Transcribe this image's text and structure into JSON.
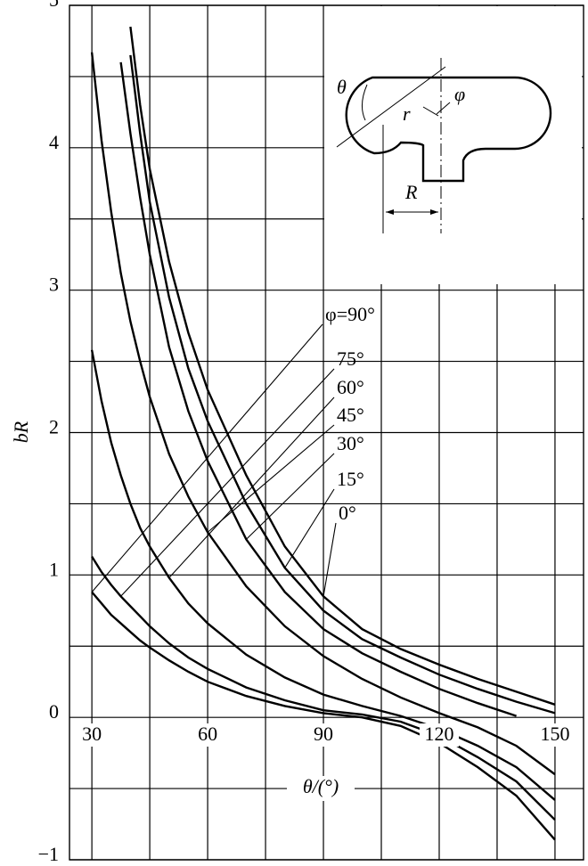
{
  "chart_data": {
    "type": "line",
    "xlabel": "θ/(°)",
    "ylabel": "bR",
    "x": [
      30,
      32.5,
      35,
      37.5,
      40,
      42.5,
      45,
      50,
      55,
      60,
      70,
      80,
      90,
      100,
      110,
      120,
      130,
      140,
      150
    ],
    "series": [
      {
        "name": "φ=90°",
        "color": "#000000",
        "values": [
          0.88,
          0.8,
          0.72,
          0.66,
          0.6,
          0.54,
          0.49,
          0.4,
          0.32,
          0.25,
          0.15,
          0.08,
          0.03,
          0,
          -0.06,
          -0.18,
          -0.35,
          -0.55,
          -0.86
        ]
      },
      {
        "name": "75°",
        "color": "#000000",
        "values": [
          1.13,
          1.02,
          0.93,
          0.85,
          0.78,
          0.71,
          0.64,
          0.52,
          0.42,
          0.34,
          0.21,
          0.12,
          0.05,
          0.02,
          -0.03,
          -0.13,
          -0.28,
          -0.45,
          -0.72
        ]
      },
      {
        "name": "60°",
        "color": "#000000",
        "values": [
          2.58,
          2.22,
          1.93,
          1.7,
          1.5,
          1.33,
          1.2,
          0.98,
          0.8,
          0.66,
          0.44,
          0.28,
          0.16,
          0.08,
          0.01,
          -0.08,
          -0.2,
          -0.35,
          -0.58
        ]
      },
      {
        "name": "45°",
        "color": "#000000",
        "values": [
          4.67,
          4.05,
          3.55,
          3.12,
          2.78,
          2.5,
          2.25,
          1.85,
          1.55,
          1.3,
          0.92,
          0.64,
          0.43,
          0.27,
          0.14,
          0.03,
          -0.07,
          -0.2,
          -0.4
        ]
      },
      {
        "name": "30°",
        "color": "#000000",
        "values": [
          null,
          null,
          null,
          4.6,
          4.1,
          3.65,
          3.25,
          2.6,
          2.15,
          1.8,
          1.25,
          0.88,
          0.62,
          0.45,
          0.32,
          0.2,
          0.1,
          0.01,
          null
        ]
      },
      {
        "name": "15°",
        "color": "#000000",
        "values": [
          null,
          null,
          null,
          null,
          4.65,
          4.1,
          3.62,
          2.95,
          2.45,
          2.08,
          1.5,
          1.05,
          0.75,
          0.55,
          0.42,
          0.3,
          0.2,
          0.11,
          0.03
        ]
      },
      {
        "name": "0°",
        "color": "#000000",
        "values": [
          null,
          null,
          null,
          null,
          4.85,
          4.3,
          3.85,
          3.2,
          2.7,
          2.3,
          1.7,
          1.2,
          0.85,
          0.62,
          0.48,
          0.37,
          0.27,
          0.18,
          0.09
        ]
      }
    ],
    "xlim": [
      24.2,
      157.4
    ],
    "ylim": [
      -1,
      5
    ],
    "xticks": [
      30,
      60,
      90,
      120,
      150
    ],
    "x_minor_ticks": [
      45,
      75,
      105,
      135
    ],
    "yticks": [
      {
        "value": -1,
        "label": "−1"
      },
      0,
      1,
      2,
      3,
      4,
      5
    ],
    "y_minor_ticks": [
      -0.5,
      0.5,
      1.5,
      2.5,
      3.5,
      4.5
    ],
    "grid": true,
    "inset": {
      "theta": "θ",
      "phi": "φ",
      "r": "r",
      "R": "R"
    }
  }
}
